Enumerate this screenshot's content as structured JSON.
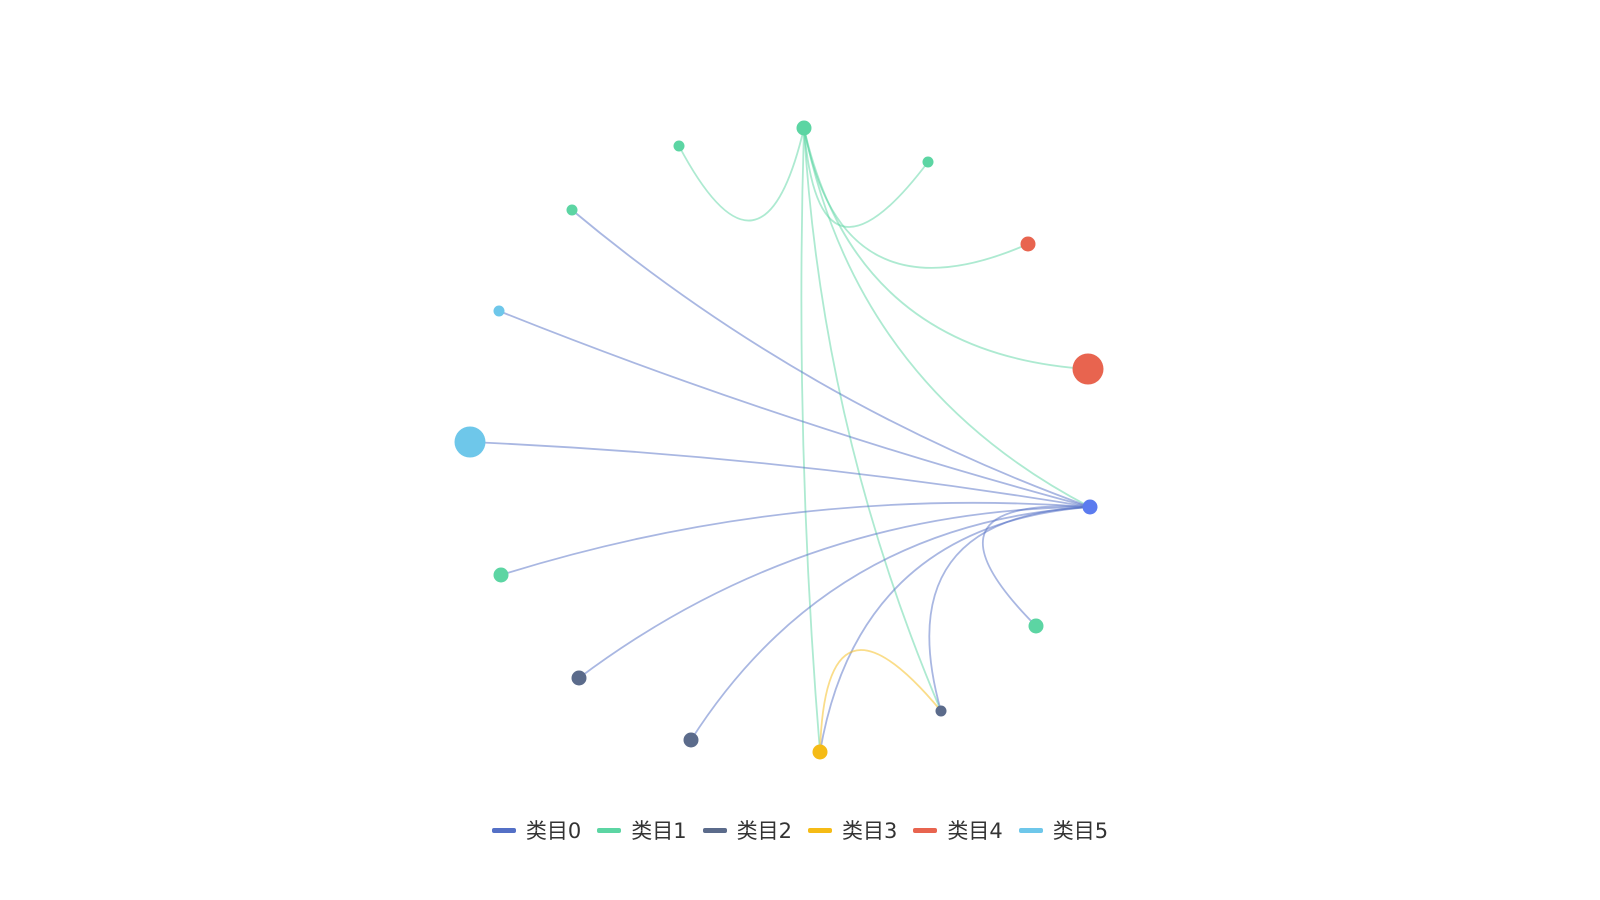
{
  "legend": {
    "items": [
      {
        "label": "类目0",
        "color": "#5470c6"
      },
      {
        "label": "类目1",
        "color": "#5cd5a3"
      },
      {
        "label": "类目2",
        "color": "#5b6b8b"
      },
      {
        "label": "类目3",
        "color": "#f5bb16"
      },
      {
        "label": "类目4",
        "color": "#e8644f"
      },
      {
        "label": "类目5",
        "color": "#6ec7ea"
      }
    ]
  },
  "graph": {
    "layout": "circular",
    "edge_style": "curved",
    "nodes": [
      {
        "id": "n0",
        "category": 0,
        "size": "medium"
      },
      {
        "id": "n1",
        "category": 4,
        "size": "large"
      },
      {
        "id": "n2",
        "category": 4,
        "size": "medium"
      },
      {
        "id": "n3",
        "category": 1,
        "size": "small"
      },
      {
        "id": "n4",
        "category": 1,
        "size": "medium"
      },
      {
        "id": "n5",
        "category": 1,
        "size": "small"
      },
      {
        "id": "n6",
        "category": 1,
        "size": "small"
      },
      {
        "id": "n7",
        "category": 5,
        "size": "small"
      },
      {
        "id": "n8",
        "category": 5,
        "size": "large"
      },
      {
        "id": "n9",
        "category": 1,
        "size": "medium"
      },
      {
        "id": "n10",
        "category": 2,
        "size": "medium"
      },
      {
        "id": "n11",
        "category": 2,
        "size": "medium"
      },
      {
        "id": "n12",
        "category": 3,
        "size": "medium"
      },
      {
        "id": "n13",
        "category": 2,
        "size": "small"
      },
      {
        "id": "n14",
        "category": 1,
        "size": "medium"
      }
    ],
    "edges": [
      {
        "source": "n4",
        "target": "n2"
      },
      {
        "source": "n4",
        "target": "n1"
      },
      {
        "source": "n4",
        "target": "n5"
      },
      {
        "source": "n4",
        "target": "n3"
      },
      {
        "source": "n4",
        "target": "n0"
      },
      {
        "source": "n4",
        "target": "n12"
      },
      {
        "source": "n4",
        "target": "n13"
      },
      {
        "source": "n0",
        "target": "n6"
      },
      {
        "source": "n0",
        "target": "n7"
      },
      {
        "source": "n0",
        "target": "n8"
      },
      {
        "source": "n0",
        "target": "n9"
      },
      {
        "source": "n0",
        "target": "n10"
      },
      {
        "source": "n0",
        "target": "n11"
      },
      {
        "source": "n0",
        "target": "n12"
      },
      {
        "source": "n0",
        "target": "n13"
      },
      {
        "source": "n0",
        "target": "n14"
      },
      {
        "source": "n12",
        "target": "n13"
      }
    ]
  }
}
